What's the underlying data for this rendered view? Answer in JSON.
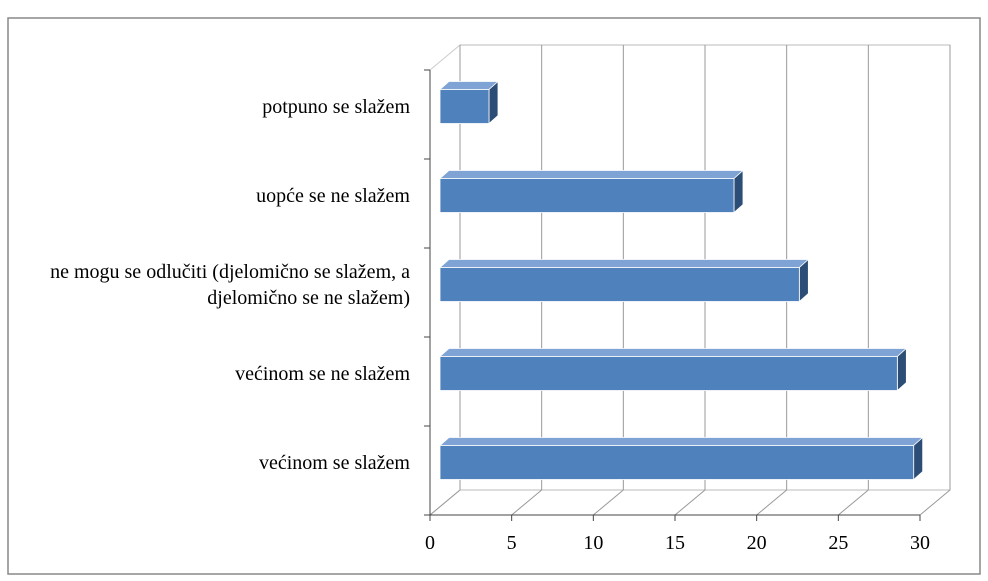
{
  "chart_data": {
    "type": "bar",
    "orientation": "horizontal",
    "categories": [
      "potpuno se slažem",
      "uopće se ne slažem",
      "ne mogu se odlučiti (djelomično se slažem, a djelomično se ne slažem)",
      "većinom se ne slažem",
      "većinom se slažem"
    ],
    "values": [
      3,
      18,
      22,
      28,
      29
    ],
    "color": "#4f81bd",
    "xlim": [
      0,
      30
    ],
    "xticks": [
      0,
      5,
      10,
      15,
      20,
      25,
      30
    ],
    "grid": true
  }
}
